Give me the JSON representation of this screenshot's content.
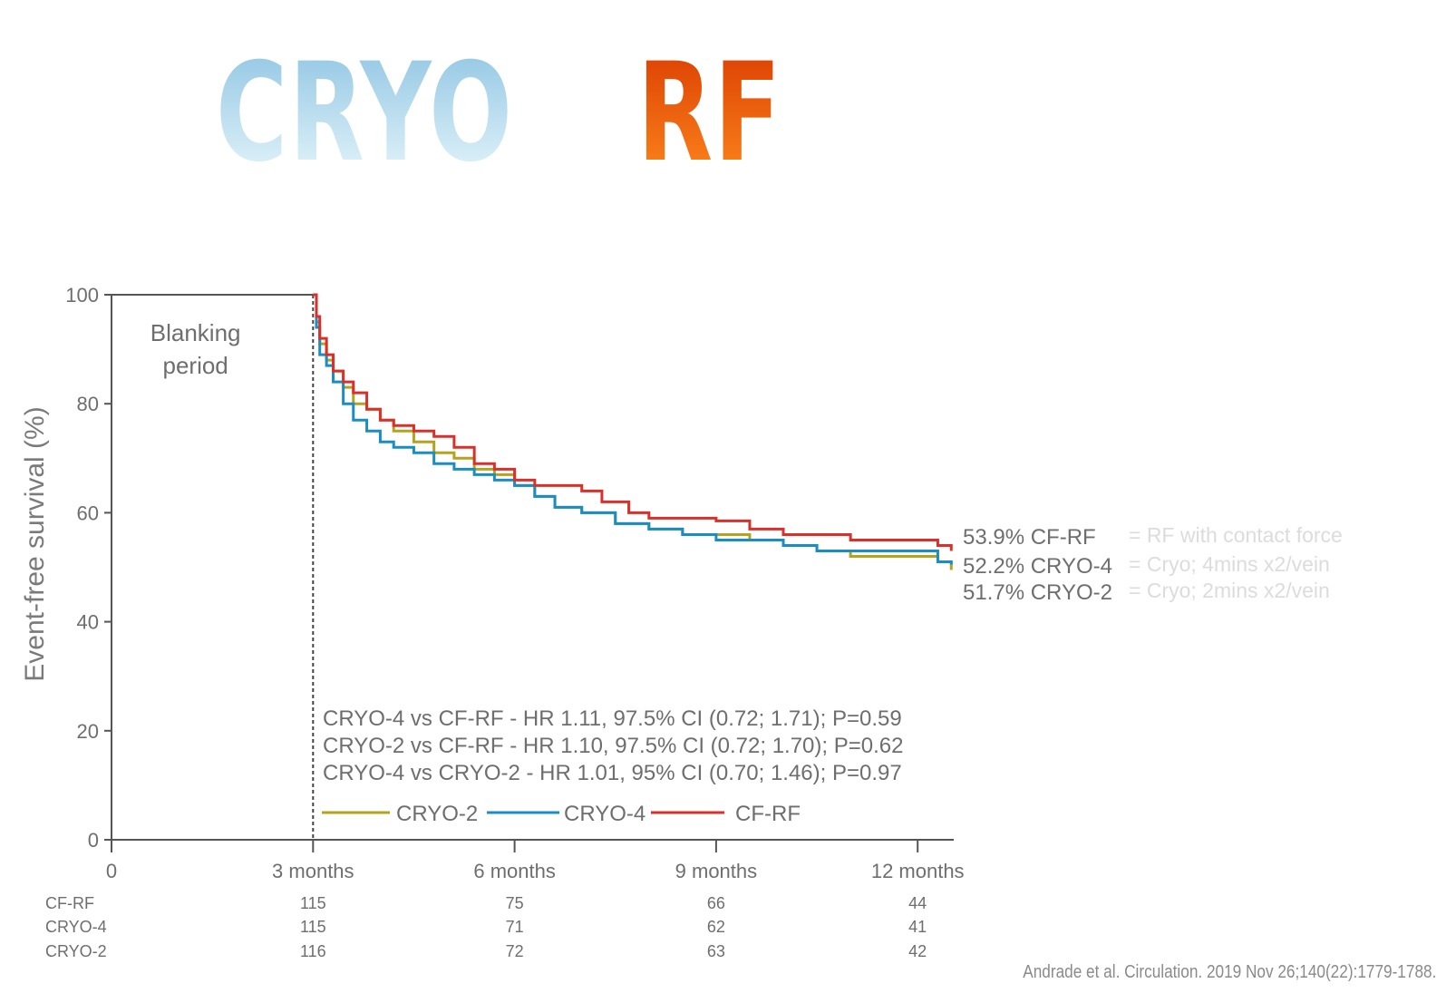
{
  "header": {
    "left_title": "CRYO",
    "right_title": "RF"
  },
  "chart_data": {
    "type": "line",
    "subtype": "kaplan-meier",
    "ylabel": "Event-free survival (%)",
    "ylim": [
      0,
      100
    ],
    "yticks": [
      0,
      20,
      40,
      60,
      80,
      100
    ],
    "xlim": [
      0,
      12.5
    ],
    "xticks": [
      {
        "value": 0,
        "label": "0"
      },
      {
        "value": 3,
        "label": "3 months"
      },
      {
        "value": 6,
        "label": "6 months"
      },
      {
        "value": 9,
        "label": "9 months"
      },
      {
        "value": 12,
        "label": "12 months"
      }
    ],
    "blanking_label_line1": "Blanking",
    "blanking_label_line2": "period",
    "blanking_end": 3,
    "series": [
      {
        "name": "CRYO-2",
        "color": "#b5a21e",
        "points": [
          [
            3,
            100
          ],
          [
            3.05,
            95
          ],
          [
            3.1,
            91
          ],
          [
            3.2,
            88
          ],
          [
            3.3,
            86
          ],
          [
            3.45,
            83
          ],
          [
            3.6,
            80
          ],
          [
            3.8,
            79
          ],
          [
            4,
            77
          ],
          [
            4.2,
            75
          ],
          [
            4.5,
            73
          ],
          [
            4.8,
            71
          ],
          [
            5.1,
            70
          ],
          [
            5.4,
            68
          ],
          [
            5.7,
            67
          ],
          [
            6,
            65
          ],
          [
            6.3,
            63
          ],
          [
            6.6,
            61
          ],
          [
            7,
            60
          ],
          [
            7.5,
            58
          ],
          [
            8,
            57
          ],
          [
            8.5,
            56
          ],
          [
            9,
            56
          ],
          [
            9.5,
            55
          ],
          [
            10,
            54
          ],
          [
            10.5,
            53
          ],
          [
            11,
            52
          ],
          [
            11.5,
            52
          ],
          [
            12,
            52
          ],
          [
            12.3,
            51
          ],
          [
            12.5,
            49.5
          ]
        ],
        "final_label": "51.7% CRYO-2",
        "note": "= Cryo; 2mins x2/vein"
      },
      {
        "name": "CRYO-4",
        "color": "#1a8ec2",
        "points": [
          [
            3,
            100
          ],
          [
            3.05,
            94
          ],
          [
            3.1,
            89
          ],
          [
            3.2,
            87
          ],
          [
            3.3,
            84
          ],
          [
            3.45,
            80
          ],
          [
            3.6,
            77
          ],
          [
            3.8,
            75
          ],
          [
            4,
            73
          ],
          [
            4.2,
            72
          ],
          [
            4.5,
            71
          ],
          [
            4.8,
            69
          ],
          [
            5.1,
            68
          ],
          [
            5.4,
            67
          ],
          [
            5.7,
            66
          ],
          [
            6,
            65
          ],
          [
            6.3,
            63
          ],
          [
            6.6,
            61
          ],
          [
            7,
            60
          ],
          [
            7.5,
            58
          ],
          [
            8,
            57
          ],
          [
            8.5,
            56
          ],
          [
            9,
            55
          ],
          [
            9.5,
            55
          ],
          [
            10,
            54
          ],
          [
            10.5,
            53
          ],
          [
            11,
            53
          ],
          [
            11.5,
            53
          ],
          [
            12,
            53
          ],
          [
            12.3,
            51
          ],
          [
            12.5,
            50.5
          ]
        ],
        "final_label": "52.2% CRYO-4",
        "note": "= Cryo; 4mins x2/vein"
      },
      {
        "name": "CF-RF",
        "color": "#d8302a",
        "points": [
          [
            3,
            100
          ],
          [
            3.05,
            96
          ],
          [
            3.1,
            92
          ],
          [
            3.2,
            89
          ],
          [
            3.3,
            86
          ],
          [
            3.45,
            84
          ],
          [
            3.6,
            82
          ],
          [
            3.8,
            79
          ],
          [
            4,
            77
          ],
          [
            4.2,
            76
          ],
          [
            4.5,
            75
          ],
          [
            4.8,
            74
          ],
          [
            5.1,
            72
          ],
          [
            5.4,
            69
          ],
          [
            5.7,
            68
          ],
          [
            6,
            66
          ],
          [
            6.3,
            65
          ],
          [
            6.6,
            65
          ],
          [
            7,
            64
          ],
          [
            7.3,
            62
          ],
          [
            7.7,
            60
          ],
          [
            8,
            59
          ],
          [
            8.5,
            59
          ],
          [
            9,
            58.5
          ],
          [
            9.5,
            57
          ],
          [
            10,
            56
          ],
          [
            10.5,
            56
          ],
          [
            11,
            55
          ],
          [
            11.5,
            55
          ],
          [
            12,
            55
          ],
          [
            12.3,
            54
          ],
          [
            12.5,
            53
          ]
        ],
        "final_label": "53.9% CF-RF",
        "note": "= RF with contact force"
      }
    ],
    "stats": [
      "CRYO-4 vs CF-RF - HR 1.11, 97.5% CI (0.72; 1.71); P=0.59",
      "CRYO-2 vs CF-RF - HR 1.10, 97.5% CI (0.72; 1.70); P=0.62",
      "CRYO-4 vs CRYO-2 - HR 1.01, 95% CI (0.70; 1.46); P=0.97"
    ],
    "legend_order": [
      "CRYO-2",
      "CRYO-4",
      "CF-RF"
    ],
    "at_risk": {
      "time_points": [
        3,
        6,
        9,
        12
      ],
      "rows": [
        {
          "name": "CF-RF",
          "values": [
            "115",
            "75",
            "66",
            "44"
          ]
        },
        {
          "name": "CRYO-4",
          "values": [
            "115",
            "71",
            "62",
            "41"
          ]
        },
        {
          "name": "CRYO-2",
          "values": [
            "116",
            "72",
            "63",
            "42"
          ]
        }
      ]
    }
  },
  "citation": "Andrade et al. Circulation. 2019 Nov 26;140(22):1779-1788."
}
